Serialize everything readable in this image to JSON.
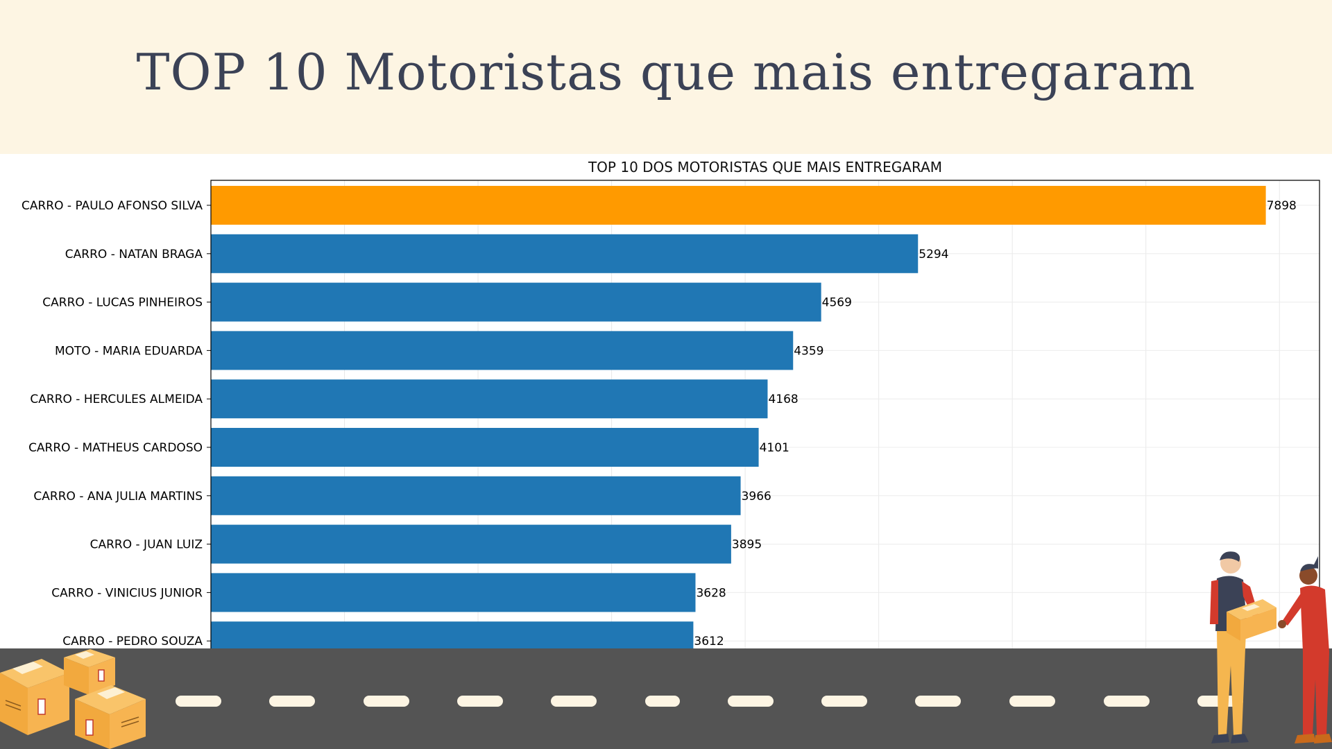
{
  "page_title": "TOP 10 Motoristas que mais entregaram",
  "colors": {
    "header_bg": "#fdf5e3",
    "title": "#3b4256",
    "bar_default": "#2077b4",
    "bar_highlight": "#ff9a00",
    "road": "#545454",
    "road_dash": "#fdf5e3"
  },
  "chart_data": {
    "type": "bar",
    "orientation": "horizontal",
    "title": "TOP 10 DOS MOTORISTAS QUE MAIS ENTREGARAM",
    "xlabel": "",
    "ylabel": "",
    "categories": [
      "CARRO - PAULO AFONSO SILVA",
      "CARRO - NATAN BRAGA",
      "CARRO - LUCAS PINHEIROS",
      "MOTO - MARIA EDUARDA",
      "CARRO - HERCULES ALMEIDA",
      "CARRO - MATHEUS CARDOSO",
      "CARRO - ANA JULIA MARTINS",
      "CARRO - JUAN LUIZ",
      "CARRO - VINICIUS JUNIOR",
      "CARRO - PEDRO SOUZA"
    ],
    "values": [
      7898,
      5294,
      4569,
      4359,
      4168,
      4101,
      3966,
      3895,
      3628,
      3612
    ],
    "highlight_index": 0,
    "xlim": [
      0,
      8300
    ],
    "grid": true,
    "data_labels": true
  },
  "decorations": [
    {
      "name": "boxes-illustration",
      "icon": "cardboard-boxes"
    },
    {
      "name": "delivery-people-illustration",
      "icon": "courier-handing-package"
    }
  ]
}
